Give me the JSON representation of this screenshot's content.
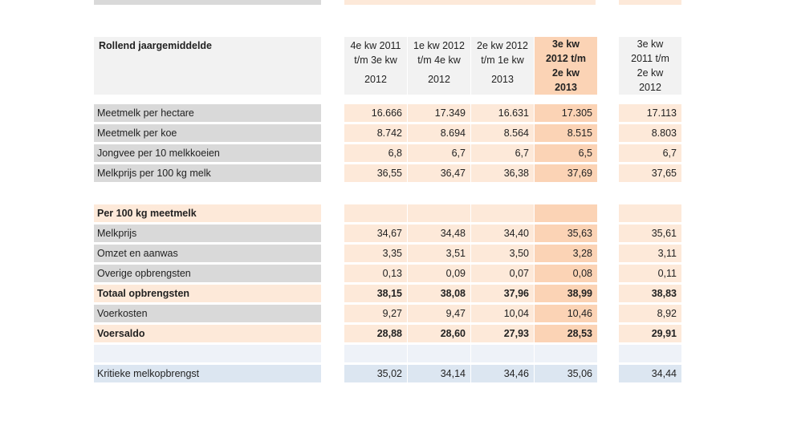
{
  "colors": {
    "label_grey": "#d9d9d9",
    "peach": "#fde9d9",
    "peach_highlight": "#fbd3b5",
    "header_grey": "#f2f2f2",
    "blue_light": "#dce6f1"
  },
  "header": {
    "title": "Rollend jaargemiddelde",
    "columns": [
      [
        "4e kw  2011",
        "t/m 3e kw",
        "2012"
      ],
      [
        "1e kw  2012",
        "t/m 4e kw",
        "2012"
      ],
      [
        "2e kw  2012",
        "t/m 1e kw",
        "2013"
      ],
      [
        "3e kw",
        "2012 t/m",
        "2e kw",
        "2013"
      ],
      [
        "3e kw",
        "2011 t/m",
        "2e kw",
        "2012"
      ]
    ]
  },
  "rows": [
    {
      "label": "Meetmelk per hectare",
      "values": [
        "16.666",
        "17.349",
        "16.631",
        "17.305",
        "17.113"
      ],
      "bold": false,
      "style": "grey"
    },
    {
      "label": "Meetmelk per koe",
      "values": [
        "8.742",
        "8.694",
        "8.564",
        "8.515",
        "8.803"
      ],
      "bold": false,
      "style": "grey"
    },
    {
      "label": "Jongvee per 10 melkkoeien",
      "values": [
        "6,8",
        "6,7",
        "6,7",
        "6,5",
        "6,7"
      ],
      "bold": false,
      "style": "grey"
    },
    {
      "label": "Melkprijs per 100 kg melk",
      "values": [
        "36,55",
        "36,47",
        "36,38",
        "37,69",
        "37,65"
      ],
      "bold": false,
      "style": "grey"
    },
    {
      "label": "",
      "values": [
        "",
        "",
        "",
        "",
        ""
      ],
      "bold": false,
      "style": "blank"
    },
    {
      "label": "Per 100 kg meetmelk",
      "values": [
        "",
        "",
        "",
        "",
        ""
      ],
      "bold": true,
      "style": "peach"
    },
    {
      "label": "Melkprijs",
      "values": [
        "34,67",
        "34,48",
        "34,40",
        "35,63",
        "35,61"
      ],
      "bold": false,
      "style": "grey"
    },
    {
      "label": "Omzet en aanwas",
      "values": [
        "3,35",
        "3,51",
        "3,50",
        "3,28",
        "3,11"
      ],
      "bold": false,
      "style": "grey"
    },
    {
      "label": "Overige opbrengsten",
      "values": [
        "0,13",
        "0,09",
        "0,07",
        "0,08",
        "0,11"
      ],
      "bold": false,
      "style": "grey"
    },
    {
      "label": "Totaal opbrengsten",
      "values": [
        "38,15",
        "38,08",
        "37,96",
        "38,99",
        "38,83"
      ],
      "bold": true,
      "style": "peach"
    },
    {
      "label": "Voerkosten",
      "values": [
        "9,27",
        "9,47",
        "10,04",
        "10,46",
        "8,92"
      ],
      "bold": false,
      "style": "grey"
    },
    {
      "label": "Voersaldo",
      "values": [
        "28,88",
        "28,60",
        "27,93",
        "28,53",
        "29,91"
      ],
      "bold": true,
      "style": "peach"
    },
    {
      "label": "",
      "values": [
        "",
        "",
        "",
        "",
        ""
      ],
      "bold": false,
      "style": "lightblue"
    },
    {
      "label": "Kritieke melkopbrengst",
      "values": [
        "35,02",
        "34,14",
        "34,46",
        "35,06",
        "34,44"
      ],
      "bold": false,
      "style": "blue"
    }
  ]
}
